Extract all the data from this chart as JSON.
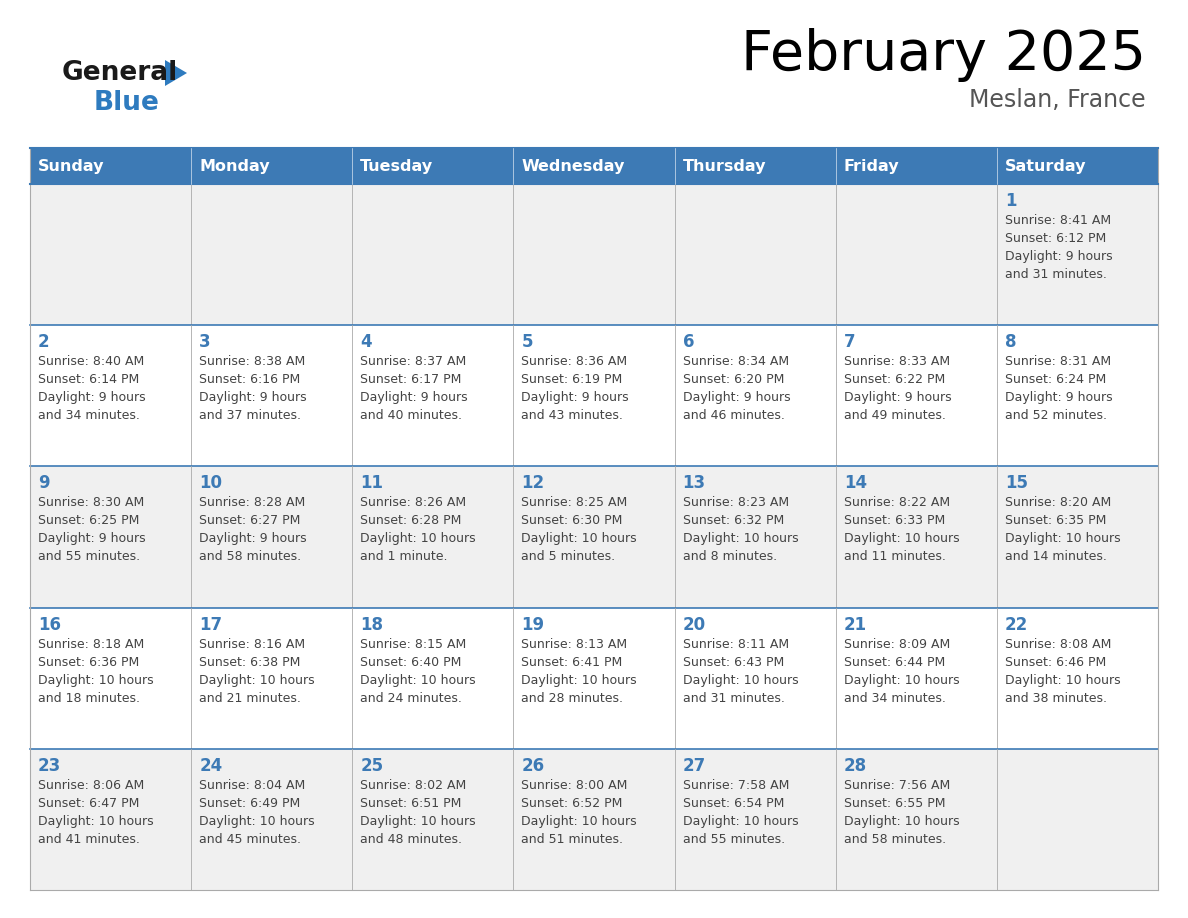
{
  "title": "February 2025",
  "subtitle": "Meslan, France",
  "header_bg": "#3d7ab5",
  "header_text_color": "#ffffff",
  "cell_bg_odd": "#f0f0f0",
  "cell_bg_even": "#ffffff",
  "text_color": "#444444",
  "day_number_color": "#3d7ab5",
  "border_color": "#aaaaaa",
  "border_color_dark": "#3d7ab5",
  "days_of_week": [
    "Sunday",
    "Monday",
    "Tuesday",
    "Wednesday",
    "Thursday",
    "Friday",
    "Saturday"
  ],
  "logo_general_color": "#1a1a1a",
  "logo_blue_color": "#2e7bbf",
  "calendar_data": [
    [
      null,
      null,
      null,
      null,
      null,
      null,
      {
        "day": "1",
        "sunrise": "8:41 AM",
        "sunset": "6:12 PM",
        "daylight": "9 hours",
        "daylight2": "and 31 minutes."
      }
    ],
    [
      {
        "day": "2",
        "sunrise": "8:40 AM",
        "sunset": "6:14 PM",
        "daylight": "9 hours",
        "daylight2": "and 34 minutes."
      },
      {
        "day": "3",
        "sunrise": "8:38 AM",
        "sunset": "6:16 PM",
        "daylight": "9 hours",
        "daylight2": "and 37 minutes."
      },
      {
        "day": "4",
        "sunrise": "8:37 AM",
        "sunset": "6:17 PM",
        "daylight": "9 hours",
        "daylight2": "and 40 minutes."
      },
      {
        "day": "5",
        "sunrise": "8:36 AM",
        "sunset": "6:19 PM",
        "daylight": "9 hours",
        "daylight2": "and 43 minutes."
      },
      {
        "day": "6",
        "sunrise": "8:34 AM",
        "sunset": "6:20 PM",
        "daylight": "9 hours",
        "daylight2": "and 46 minutes."
      },
      {
        "day": "7",
        "sunrise": "8:33 AM",
        "sunset": "6:22 PM",
        "daylight": "9 hours",
        "daylight2": "and 49 minutes."
      },
      {
        "day": "8",
        "sunrise": "8:31 AM",
        "sunset": "6:24 PM",
        "daylight": "9 hours",
        "daylight2": "and 52 minutes."
      }
    ],
    [
      {
        "day": "9",
        "sunrise": "8:30 AM",
        "sunset": "6:25 PM",
        "daylight": "9 hours",
        "daylight2": "and 55 minutes."
      },
      {
        "day": "10",
        "sunrise": "8:28 AM",
        "sunset": "6:27 PM",
        "daylight": "9 hours",
        "daylight2": "and 58 minutes."
      },
      {
        "day": "11",
        "sunrise": "8:26 AM",
        "sunset": "6:28 PM",
        "daylight": "10 hours",
        "daylight2": "and 1 minute."
      },
      {
        "day": "12",
        "sunrise": "8:25 AM",
        "sunset": "6:30 PM",
        "daylight": "10 hours",
        "daylight2": "and 5 minutes."
      },
      {
        "day": "13",
        "sunrise": "8:23 AM",
        "sunset": "6:32 PM",
        "daylight": "10 hours",
        "daylight2": "and 8 minutes."
      },
      {
        "day": "14",
        "sunrise": "8:22 AM",
        "sunset": "6:33 PM",
        "daylight": "10 hours",
        "daylight2": "and 11 minutes."
      },
      {
        "day": "15",
        "sunrise": "8:20 AM",
        "sunset": "6:35 PM",
        "daylight": "10 hours",
        "daylight2": "and 14 minutes."
      }
    ],
    [
      {
        "day": "16",
        "sunrise": "8:18 AM",
        "sunset": "6:36 PM",
        "daylight": "10 hours",
        "daylight2": "and 18 minutes."
      },
      {
        "day": "17",
        "sunrise": "8:16 AM",
        "sunset": "6:38 PM",
        "daylight": "10 hours",
        "daylight2": "and 21 minutes."
      },
      {
        "day": "18",
        "sunrise": "8:15 AM",
        "sunset": "6:40 PM",
        "daylight": "10 hours",
        "daylight2": "and 24 minutes."
      },
      {
        "day": "19",
        "sunrise": "8:13 AM",
        "sunset": "6:41 PM",
        "daylight": "10 hours",
        "daylight2": "and 28 minutes."
      },
      {
        "day": "20",
        "sunrise": "8:11 AM",
        "sunset": "6:43 PM",
        "daylight": "10 hours",
        "daylight2": "and 31 minutes."
      },
      {
        "day": "21",
        "sunrise": "8:09 AM",
        "sunset": "6:44 PM",
        "daylight": "10 hours",
        "daylight2": "and 34 minutes."
      },
      {
        "day": "22",
        "sunrise": "8:08 AM",
        "sunset": "6:46 PM",
        "daylight": "10 hours",
        "daylight2": "and 38 minutes."
      }
    ],
    [
      {
        "day": "23",
        "sunrise": "8:06 AM",
        "sunset": "6:47 PM",
        "daylight": "10 hours",
        "daylight2": "and 41 minutes."
      },
      {
        "day": "24",
        "sunrise": "8:04 AM",
        "sunset": "6:49 PM",
        "daylight": "10 hours",
        "daylight2": "and 45 minutes."
      },
      {
        "day": "25",
        "sunrise": "8:02 AM",
        "sunset": "6:51 PM",
        "daylight": "10 hours",
        "daylight2": "and 48 minutes."
      },
      {
        "day": "26",
        "sunrise": "8:00 AM",
        "sunset": "6:52 PM",
        "daylight": "10 hours",
        "daylight2": "and 51 minutes."
      },
      {
        "day": "27",
        "sunrise": "7:58 AM",
        "sunset": "6:54 PM",
        "daylight": "10 hours",
        "daylight2": "and 55 minutes."
      },
      {
        "day": "28",
        "sunrise": "7:56 AM",
        "sunset": "6:55 PM",
        "daylight": "10 hours",
        "daylight2": "and 58 minutes."
      },
      null
    ]
  ]
}
